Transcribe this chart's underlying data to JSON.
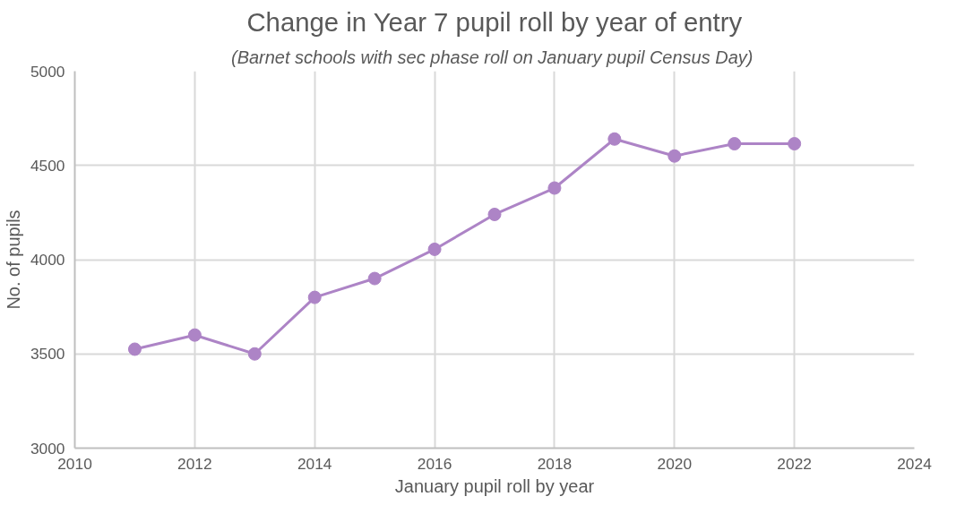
{
  "chart_data": {
    "type": "line",
    "title": "Change in Year 7 pupil roll by year of entry",
    "subtitle": "(Barnet schools with sec phase  roll on January pupil Census Day)",
    "xlabel": "January pupil roll by year",
    "ylabel": "No. of pupils",
    "x": [
      2011,
      2012,
      2013,
      2014,
      2015,
      2016,
      2017,
      2018,
      2019,
      2020,
      2021,
      2022
    ],
    "series": [
      {
        "color": "#ad84c6",
        "values": [
          3525,
          3600,
          3500,
          3800,
          3900,
          4055,
          4240,
          4380,
          4640,
          4550,
          4615,
          4615
        ]
      }
    ],
    "xlim": [
      2010,
      2024
    ],
    "xticks": [
      2010,
      2012,
      2014,
      2016,
      2018,
      2020,
      2022,
      2024
    ],
    "ylim": [
      3000,
      5000
    ],
    "yticks": [
      3000,
      3500,
      4000,
      4500,
      5000
    ],
    "grid": true,
    "marker": "circle",
    "line_style": "solid"
  }
}
